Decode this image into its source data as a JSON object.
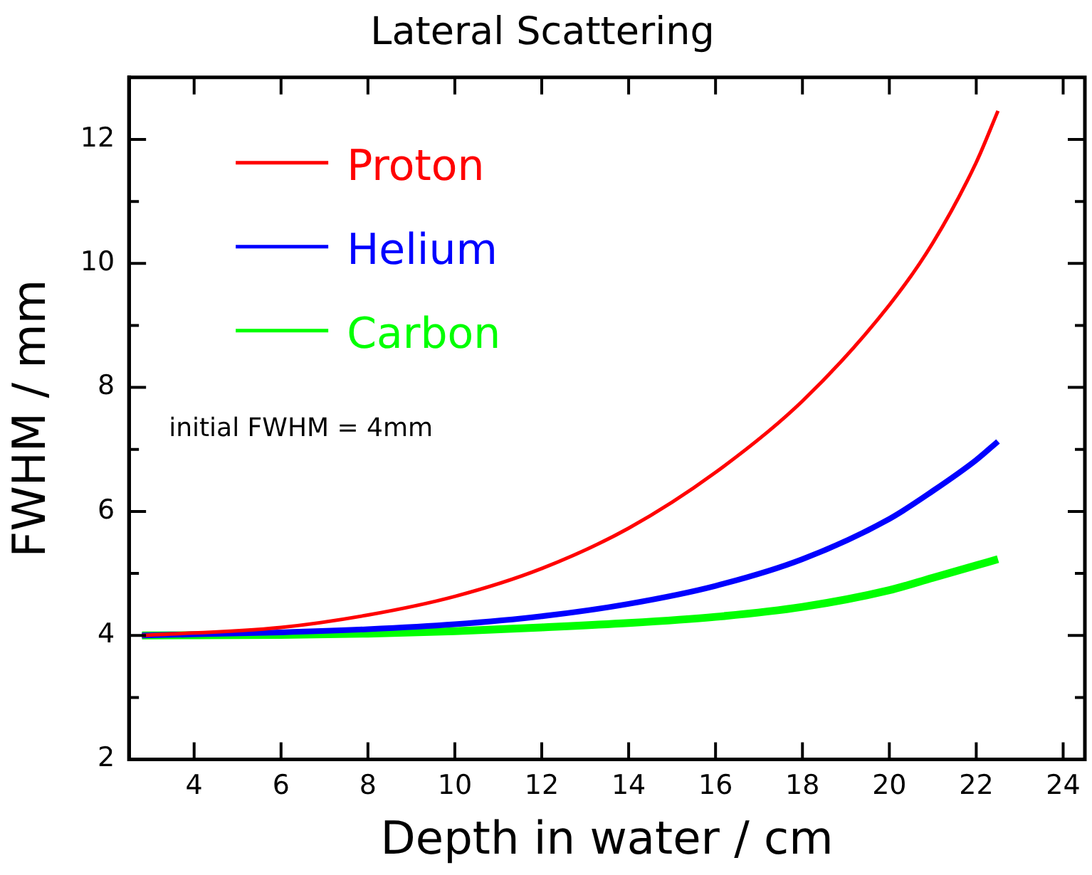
{
  "chart_data": {
    "type": "line",
    "title": "Lateral Scattering",
    "xlabel": "Depth in water / cm",
    "ylabel": "FWHM / mm",
    "annotations": [
      "initial FWHM = 4mm"
    ],
    "xlim": [
      2.5,
      24.5
    ],
    "xticks": [
      4,
      6,
      8,
      10,
      12,
      14,
      16,
      18,
      20,
      22,
      24
    ],
    "ylim": [
      2,
      13
    ],
    "yticks": [
      2,
      {
        "value": 3,
        "label": null
      },
      4,
      {
        "value": 5,
        "label": null
      },
      6,
      {
        "value": 7,
        "label": null
      },
      8,
      {
        "value": 9,
        "label": null
      },
      10,
      {
        "value": 11,
        "label": null
      },
      12
    ],
    "grid": false,
    "legend": "top left",
    "marker": "none",
    "line_style": "solid",
    "series": [
      {
        "name": "Proton",
        "color": "#ff0000",
        "x": [
          2.8,
          6,
          8,
          10,
          12,
          14,
          16,
          18,
          20,
          21,
          22,
          22.5
        ],
        "values": [
          4.0,
          4.13,
          4.33,
          4.63,
          5.08,
          5.73,
          6.63,
          7.78,
          9.33,
          10.33,
          11.63,
          12.46
        ]
      },
      {
        "name": "Helium",
        "color": "#0000ff",
        "x": [
          2.8,
          6,
          8,
          10,
          12,
          14,
          16,
          18,
          20,
          21,
          22,
          22.5
        ],
        "values": [
          4.0,
          4.05,
          4.1,
          4.18,
          4.31,
          4.51,
          4.8,
          5.23,
          5.88,
          6.33,
          6.83,
          7.13
        ]
      },
      {
        "name": "Carbon",
        "color": "#00ff00",
        "x": [
          2.8,
          6,
          8,
          10,
          12,
          14,
          16,
          18,
          20,
          21,
          22,
          22.5
        ],
        "values": [
          4.0,
          4.01,
          4.03,
          4.07,
          4.13,
          4.2,
          4.3,
          4.46,
          4.73,
          4.93,
          5.13,
          5.23
        ]
      }
    ]
  }
}
